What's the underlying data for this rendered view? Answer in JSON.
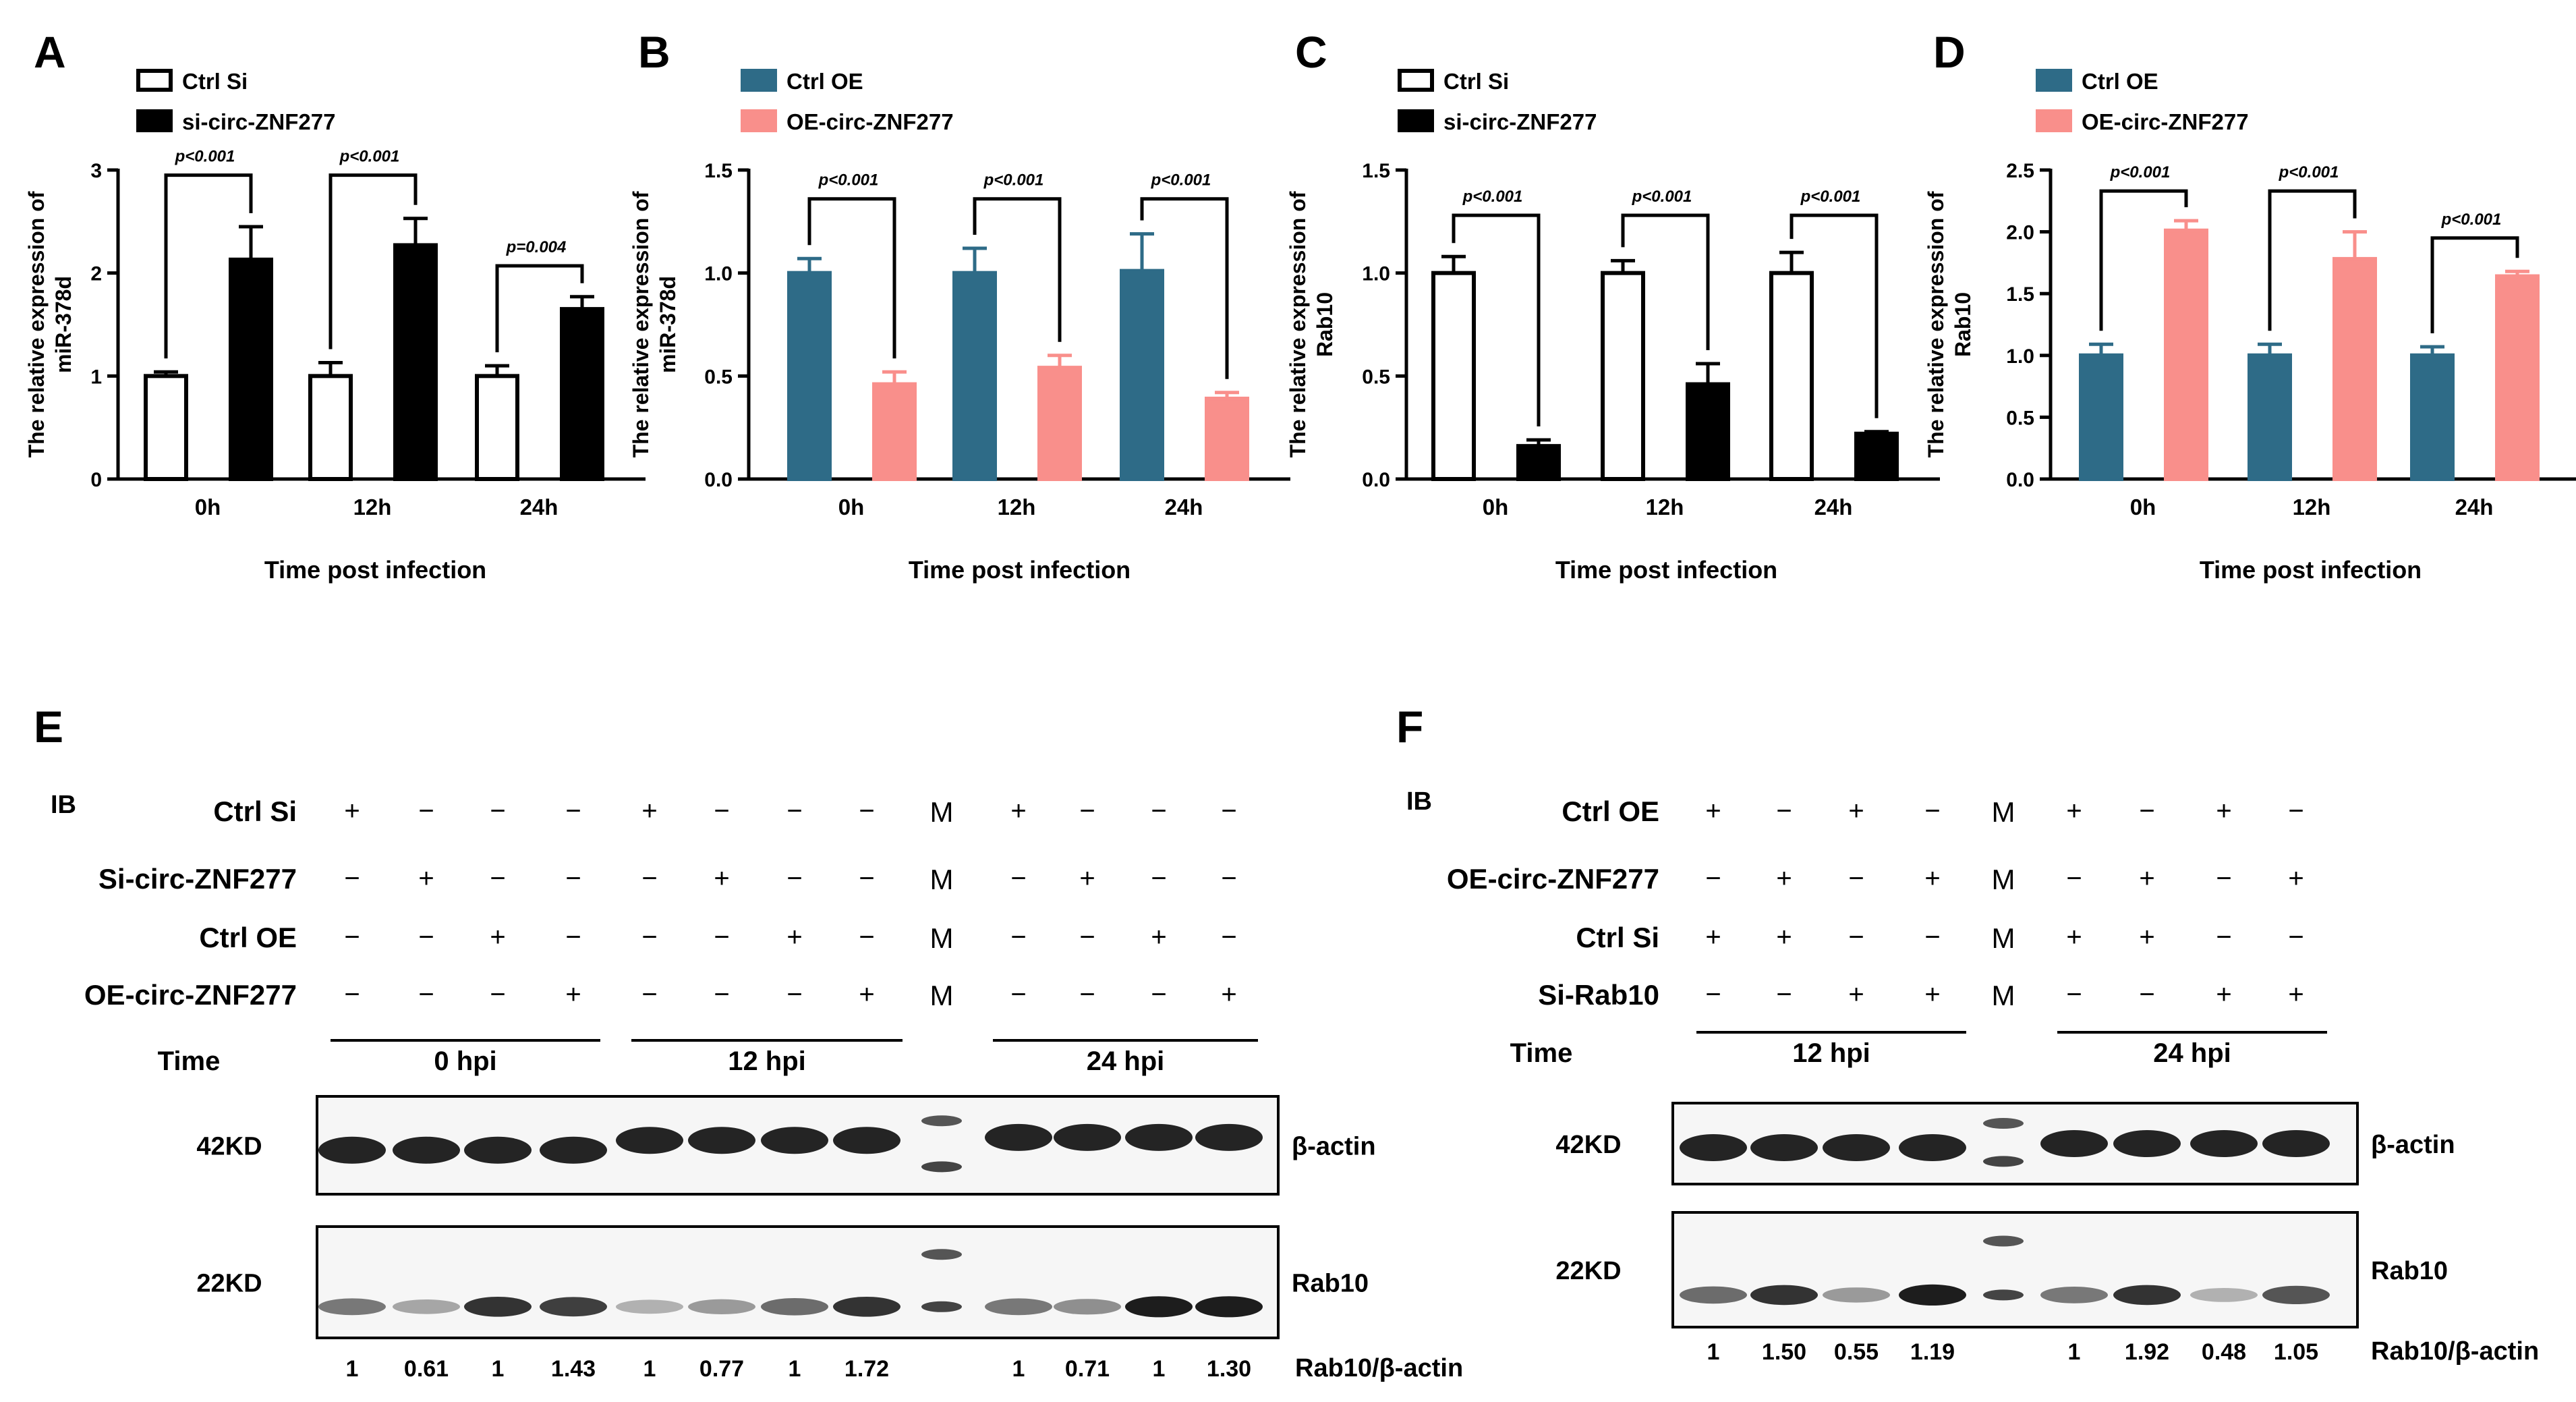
{
  "colors": {
    "black": "#000000",
    "white": "#ffffff",
    "teal": "#2e6b87",
    "salmon": "#f98f8b",
    "blot_bg": "#f7f7f7",
    "band": "#1a1a1a"
  },
  "chart_data": [
    {
      "panel": "A",
      "type": "bar",
      "title": "",
      "categories": [
        "0h",
        "12h",
        "24h"
      ],
      "xlabel": "Time post infection",
      "ylabel_lines": [
        "The relative expression of",
        "miR-378d"
      ],
      "ylim": [
        0,
        3
      ],
      "yticks": [
        0,
        1,
        2,
        3
      ],
      "ytick_labels": [
        "0",
        "1",
        "2",
        "3"
      ],
      "legend": [
        "Ctrl Si",
        "si-circ-ZNF277"
      ],
      "series": [
        {
          "name": "Ctrl Si",
          "values": [
            1.0,
            1.0,
            1.0
          ],
          "errors": [
            0.04,
            0.13,
            0.1
          ],
          "fill": "#ffffff",
          "stroke": "#000000"
        },
        {
          "name": "si-circ-ZNF277",
          "values": [
            2.13,
            2.27,
            1.65
          ],
          "errors": [
            0.32,
            0.26,
            0.12
          ],
          "fill": "#000000",
          "stroke": "#000000"
        }
      ],
      "significance": [
        {
          "category": 0,
          "label": "p<0.001",
          "bracket_y": 2.95
        },
        {
          "category": 1,
          "label": "p<0.001",
          "bracket_y": 2.95
        },
        {
          "category": 2,
          "label": "p=0.004",
          "bracket_y": 2.07
        }
      ]
    },
    {
      "panel": "B",
      "type": "bar",
      "title": "",
      "categories": [
        "0h",
        "12h",
        "24h"
      ],
      "xlabel": "Time post infection",
      "ylabel_lines": [
        "The relative expression of",
        "miR-378d"
      ],
      "ylim": [
        0,
        1.5
      ],
      "yticks": [
        0,
        0.5,
        1.0,
        1.5
      ],
      "ytick_labels": [
        "0.0",
        "0.5",
        "1.0",
        "1.5"
      ],
      "legend": [
        "Ctrl OE",
        "OE-circ-ZNF277"
      ],
      "series": [
        {
          "name": "Ctrl OE",
          "values": [
            1.0,
            1.0,
            1.01
          ],
          "errors": [
            0.07,
            0.12,
            0.18
          ],
          "fill": "#2e6b87",
          "stroke": "#2e6b87"
        },
        {
          "name": "OE-circ-ZNF277",
          "values": [
            0.46,
            0.54,
            0.39
          ],
          "errors": [
            0.06,
            0.06,
            0.03
          ],
          "fill": "#f98f8b",
          "stroke": "#f98f8b"
        }
      ],
      "significance": [
        {
          "category": 0,
          "label": "p<0.001",
          "bracket_y": 1.36
        },
        {
          "category": 1,
          "label": "p<0.001",
          "bracket_y": 1.36
        },
        {
          "category": 2,
          "label": "p<0.001",
          "bracket_y": 1.36
        }
      ]
    },
    {
      "panel": "C",
      "type": "bar",
      "title": "",
      "categories": [
        "0h",
        "12h",
        "24h"
      ],
      "xlabel": "Time post infection",
      "ylabel_lines": [
        "The relative expression of",
        "Rab10"
      ],
      "ylim": [
        0,
        1.5
      ],
      "yticks": [
        0,
        0.5,
        1.0,
        1.5
      ],
      "ytick_labels": [
        "0.0",
        "0.5",
        "1.0",
        "1.5"
      ],
      "legend": [
        "Ctrl Si",
        "si-circ-ZNF277"
      ],
      "series": [
        {
          "name": "Ctrl Si",
          "values": [
            1.0,
            1.0,
            1.0
          ],
          "errors": [
            0.08,
            0.06,
            0.1
          ],
          "fill": "#ffffff",
          "stroke": "#000000"
        },
        {
          "name": "si-circ-ZNF277",
          "values": [
            0.16,
            0.46,
            0.22
          ],
          "errors": [
            0.03,
            0.1,
            0.01
          ],
          "fill": "#000000",
          "stroke": "#000000"
        }
      ],
      "significance": [
        {
          "category": 0,
          "label": "p<0.001",
          "bracket_y": 1.28
        },
        {
          "category": 1,
          "label": "p<0.001",
          "bracket_y": 1.28
        },
        {
          "category": 2,
          "label": "p<0.001",
          "bracket_y": 1.28
        }
      ]
    },
    {
      "panel": "D",
      "type": "bar",
      "title": "",
      "categories": [
        "0h",
        "12h",
        "24h"
      ],
      "xlabel": "Time post infection",
      "ylabel_lines": [
        "The relative expression of",
        "Rab10"
      ],
      "ylim": [
        0,
        2.5
      ],
      "yticks": [
        0,
        0.5,
        1.0,
        1.5,
        2.0,
        2.5
      ],
      "ytick_labels": [
        "0.0",
        "0.5",
        "1.0",
        "1.5",
        "2.0",
        "2.5"
      ],
      "legend": [
        "Ctrl OE",
        "OE-circ-ZNF277"
      ],
      "series": [
        {
          "name": "Ctrl OE",
          "values": [
            1.0,
            1.0,
            1.0
          ],
          "errors": [
            0.09,
            0.09,
            0.07
          ],
          "fill": "#2e6b87",
          "stroke": "#2e6b87"
        },
        {
          "name": "OE-circ-ZNF277",
          "values": [
            2.01,
            1.78,
            1.64
          ],
          "errors": [
            0.08,
            0.22,
            0.04
          ],
          "fill": "#f98f8b",
          "stroke": "#f98f8b"
        }
      ],
      "significance": [
        {
          "category": 0,
          "label": "p<0.001",
          "bracket_y": 2.33
        },
        {
          "category": 1,
          "label": "p<0.001",
          "bracket_y": 2.33
        },
        {
          "category": 2,
          "label": "p<0.001",
          "bracket_y": 1.95
        }
      ]
    }
  ],
  "blots": {
    "E": {
      "panel_label": "E",
      "ib_label": "IB",
      "time_label": "Time",
      "marker_label": "M",
      "row_labels": [
        "Ctrl  Si",
        "Si-circ-ZNF277",
        "Ctrl OE",
        "OE-circ-ZNF277"
      ],
      "row_signs": [
        [
          "+",
          "−",
          "−",
          "−",
          "+",
          "−",
          "−",
          "−",
          "+",
          "−",
          "−",
          "−"
        ],
        [
          "−",
          "+",
          "−",
          "−",
          "−",
          "+",
          "−",
          "−",
          "−",
          "+",
          "−",
          "−"
        ],
        [
          "−",
          "−",
          "+",
          "−",
          "−",
          "−",
          "+",
          "−",
          "−",
          "−",
          "+",
          "−"
        ],
        [
          "−",
          "−",
          "−",
          "+",
          "−",
          "−",
          "−",
          "+",
          "−",
          "−",
          "−",
          "+"
        ]
      ],
      "time_groups": [
        "0 hpi",
        "12 hpi",
        "24 hpi"
      ],
      "mw_labels": [
        "42KD",
        "22KD"
      ],
      "band_labels": [
        "β-actin",
        "Rab10"
      ],
      "ratio_label": "Rab10/β-actin",
      "ratios": [
        "1",
        "0.61",
        "1",
        "1.43",
        "1",
        "0.77",
        "1",
        "1.72",
        "1",
        "0.71",
        "1",
        "1.30"
      ],
      "rab10_intensity": [
        0.55,
        0.35,
        0.85,
        0.8,
        0.3,
        0.4,
        0.6,
        0.85,
        0.55,
        0.45,
        0.95,
        0.95
      ]
    },
    "F": {
      "panel_label": "F",
      "ib_label": "IB",
      "time_label": "Time",
      "marker_label": "M",
      "row_labels": [
        "Ctrl  OE",
        "OE-circ-ZNF277",
        "Ctrl Si",
        "Si-Rab10"
      ],
      "row_signs": [
        [
          "+",
          "−",
          "+",
          "−",
          "+",
          "−",
          "+",
          "−"
        ],
        [
          "−",
          "+",
          "−",
          "+",
          "−",
          "+",
          "−",
          "+"
        ],
        [
          "+",
          "+",
          "−",
          "−",
          "+",
          "+",
          "−",
          "−"
        ],
        [
          "−",
          "−",
          "+",
          "+",
          "−",
          "−",
          "+",
          "+"
        ]
      ],
      "time_groups": [
        "12 hpi",
        "24 hpi"
      ],
      "mw_labels": [
        "42KD",
        "22KD"
      ],
      "band_labels": [
        "β-actin",
        "Rab10"
      ],
      "ratio_label": "Rab10/β-actin",
      "ratios": [
        "1",
        "1.50",
        "0.55",
        "1.19",
        "1",
        "1.92",
        "0.48",
        "1.05"
      ],
      "rab10_intensity": [
        0.6,
        0.85,
        0.4,
        0.95,
        0.55,
        0.85,
        0.3,
        0.7
      ]
    }
  }
}
